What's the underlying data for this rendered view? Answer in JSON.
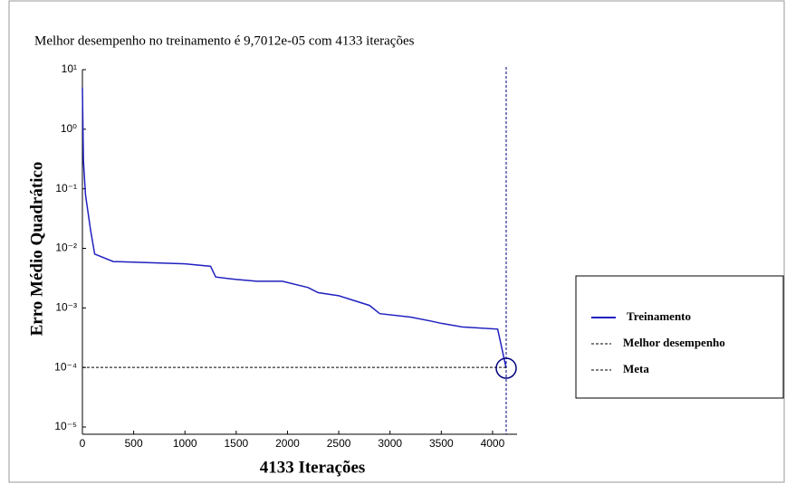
{
  "chart_data": {
    "type": "line",
    "title": "Melhor desempenho no treinamento  é 9,7012e-05  com 4133 iterações",
    "x_label": "4133 Iterações",
    "y_label": "Erro Médio Quadrático",
    "log_y": true,
    "xlim": [
      0,
      4133
    ],
    "ylim": [
      1e-05,
      10
    ],
    "xticks": [
      0,
      500,
      1000,
      1500,
      2000,
      2500,
      3000,
      3500,
      4000
    ],
    "yticks": [
      {
        "value": 1e-05,
        "label": "10⁻⁵"
      },
      {
        "value": 0.0001,
        "label": "10⁻⁴"
      },
      {
        "value": 0.001,
        "label": "10⁻³"
      },
      {
        "value": 0.01,
        "label": "10⁻²"
      },
      {
        "value": 0.1,
        "label": "10⁻¹"
      },
      {
        "value": 1,
        "label": "10⁰"
      },
      {
        "value": 10,
        "label": "10¹"
      }
    ],
    "series": [
      {
        "name": "Treinamento",
        "color": "#2020c0",
        "x": [
          0,
          10,
          30,
          80,
          120,
          300,
          1000,
          1250,
          1300,
          1500,
          1700,
          1950,
          2200,
          2300,
          2500,
          2800,
          2900,
          3200,
          3400,
          3500,
          3700,
          4050,
          4133
        ],
        "values": [
          5,
          0.3,
          0.08,
          0.02,
          0.008,
          0.006,
          0.0055,
          0.005,
          0.0033,
          0.003,
          0.0028,
          0.0028,
          0.0022,
          0.0018,
          0.0016,
          0.0011,
          0.0008,
          0.0007,
          0.0006,
          0.00055,
          0.00048,
          0.00044,
          9.7012e-05
        ]
      }
    ],
    "reference_lines": [
      {
        "name": "Melhor desempenho",
        "axis": "x",
        "value": 4133,
        "color": "#000080"
      },
      {
        "name": "Meta",
        "axis": "y",
        "value": 0.0001,
        "color": "#000000"
      }
    ],
    "best_point": {
      "x": 4133,
      "value": 9.7012e-05,
      "color": "#000080"
    }
  }
}
